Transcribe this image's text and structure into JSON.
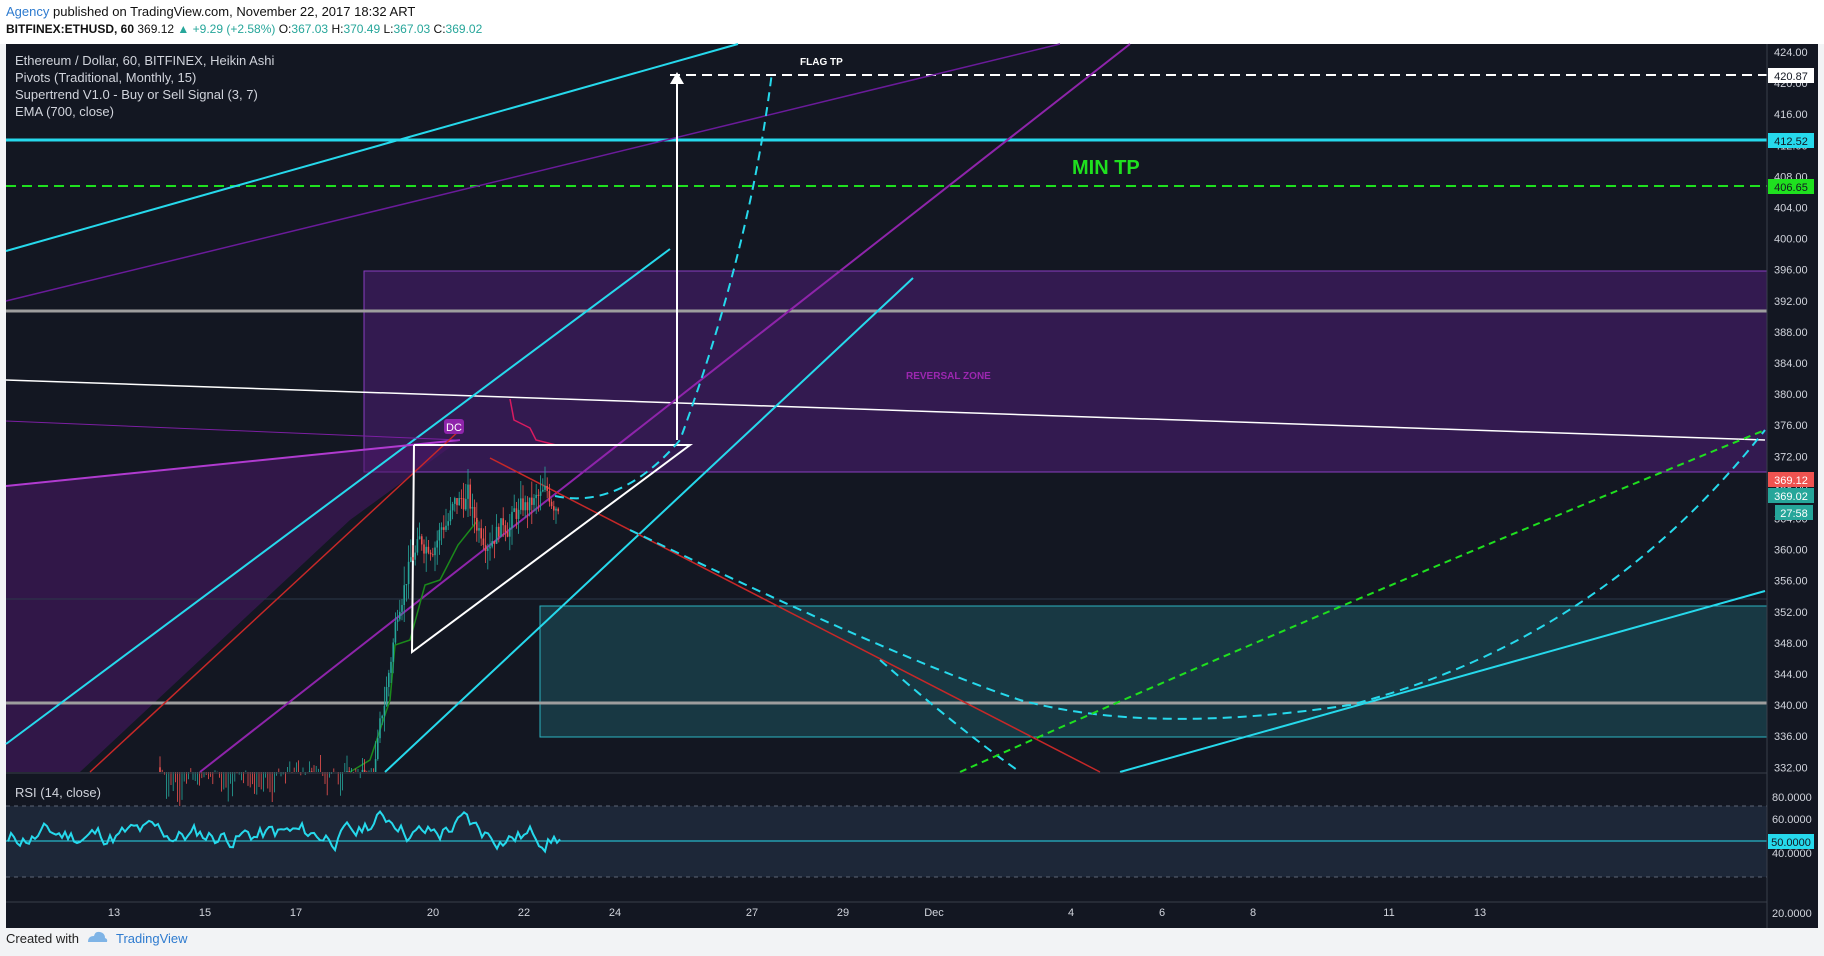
{
  "header": {
    "author": "Agency",
    "published": "published on TradingView.com, November 22, 2017 18:32 ART",
    "symbol": "BITFINEX:ETHUSD, 60",
    "price": "369.12",
    "change": "+9.29 (+2.58%)",
    "o_label": "O:",
    "o_value": "367.03",
    "h_label": "H:",
    "h_value": "370.49",
    "l_label": "L:",
    "l_value": "367.03",
    "c_label": "C:",
    "c_value": "369.02"
  },
  "legend": {
    "series": "Ethereum / Dollar, 60, BITFINEX, Heikin Ashi",
    "pivots": "Pivots (Traditional, Monthly, 15)",
    "supertrend": "Supertrend V1.0 - Buy or Sell Signal (3, 7)",
    "ema": "EMA (700, close)"
  },
  "annotations": {
    "flag_tp": "FLAG TP",
    "min_tp": "MIN TP",
    "reversal_zone": "REVERSAL ZONE",
    "dc": "DC"
  },
  "price_axis": {
    "ticks": [
      "424.00",
      "420.00",
      "416.00",
      "412.00",
      "408.00",
      "404.00",
      "400.00",
      "396.00",
      "392.00",
      "388.00",
      "384.00",
      "380.00",
      "376.00",
      "372.00",
      "368.00",
      "364.00",
      "360.00",
      "356.00",
      "352.00",
      "348.00",
      "344.00",
      "340.00",
      "336.00",
      "332.00"
    ],
    "flag_tp_badge": "420.87",
    "resistance_badge": "412.52",
    "min_tp_badge": "406.65",
    "last_badge": "369.12",
    "close_badge": "369.02",
    "timer_badge": "27:58"
  },
  "rsi": {
    "label": "RSI (14, close)",
    "ticks": [
      "80.0000",
      "60.0000",
      "40.0000",
      "20.0000"
    ],
    "mid_badge": "50.0000"
  },
  "time_axis": [
    "13",
    "15",
    "17",
    "20",
    "22",
    "24",
    "27",
    "29",
    "Dec",
    "4",
    "6",
    "8",
    "11",
    "13"
  ],
  "footer": {
    "created": "Created with",
    "brand": "TradingView"
  },
  "colors": {
    "bg": "#131722",
    "cyan": "#26d9ec",
    "green": "#1fe01f",
    "purple": "#7b1fa2",
    "red": "#e0303a"
  }
}
